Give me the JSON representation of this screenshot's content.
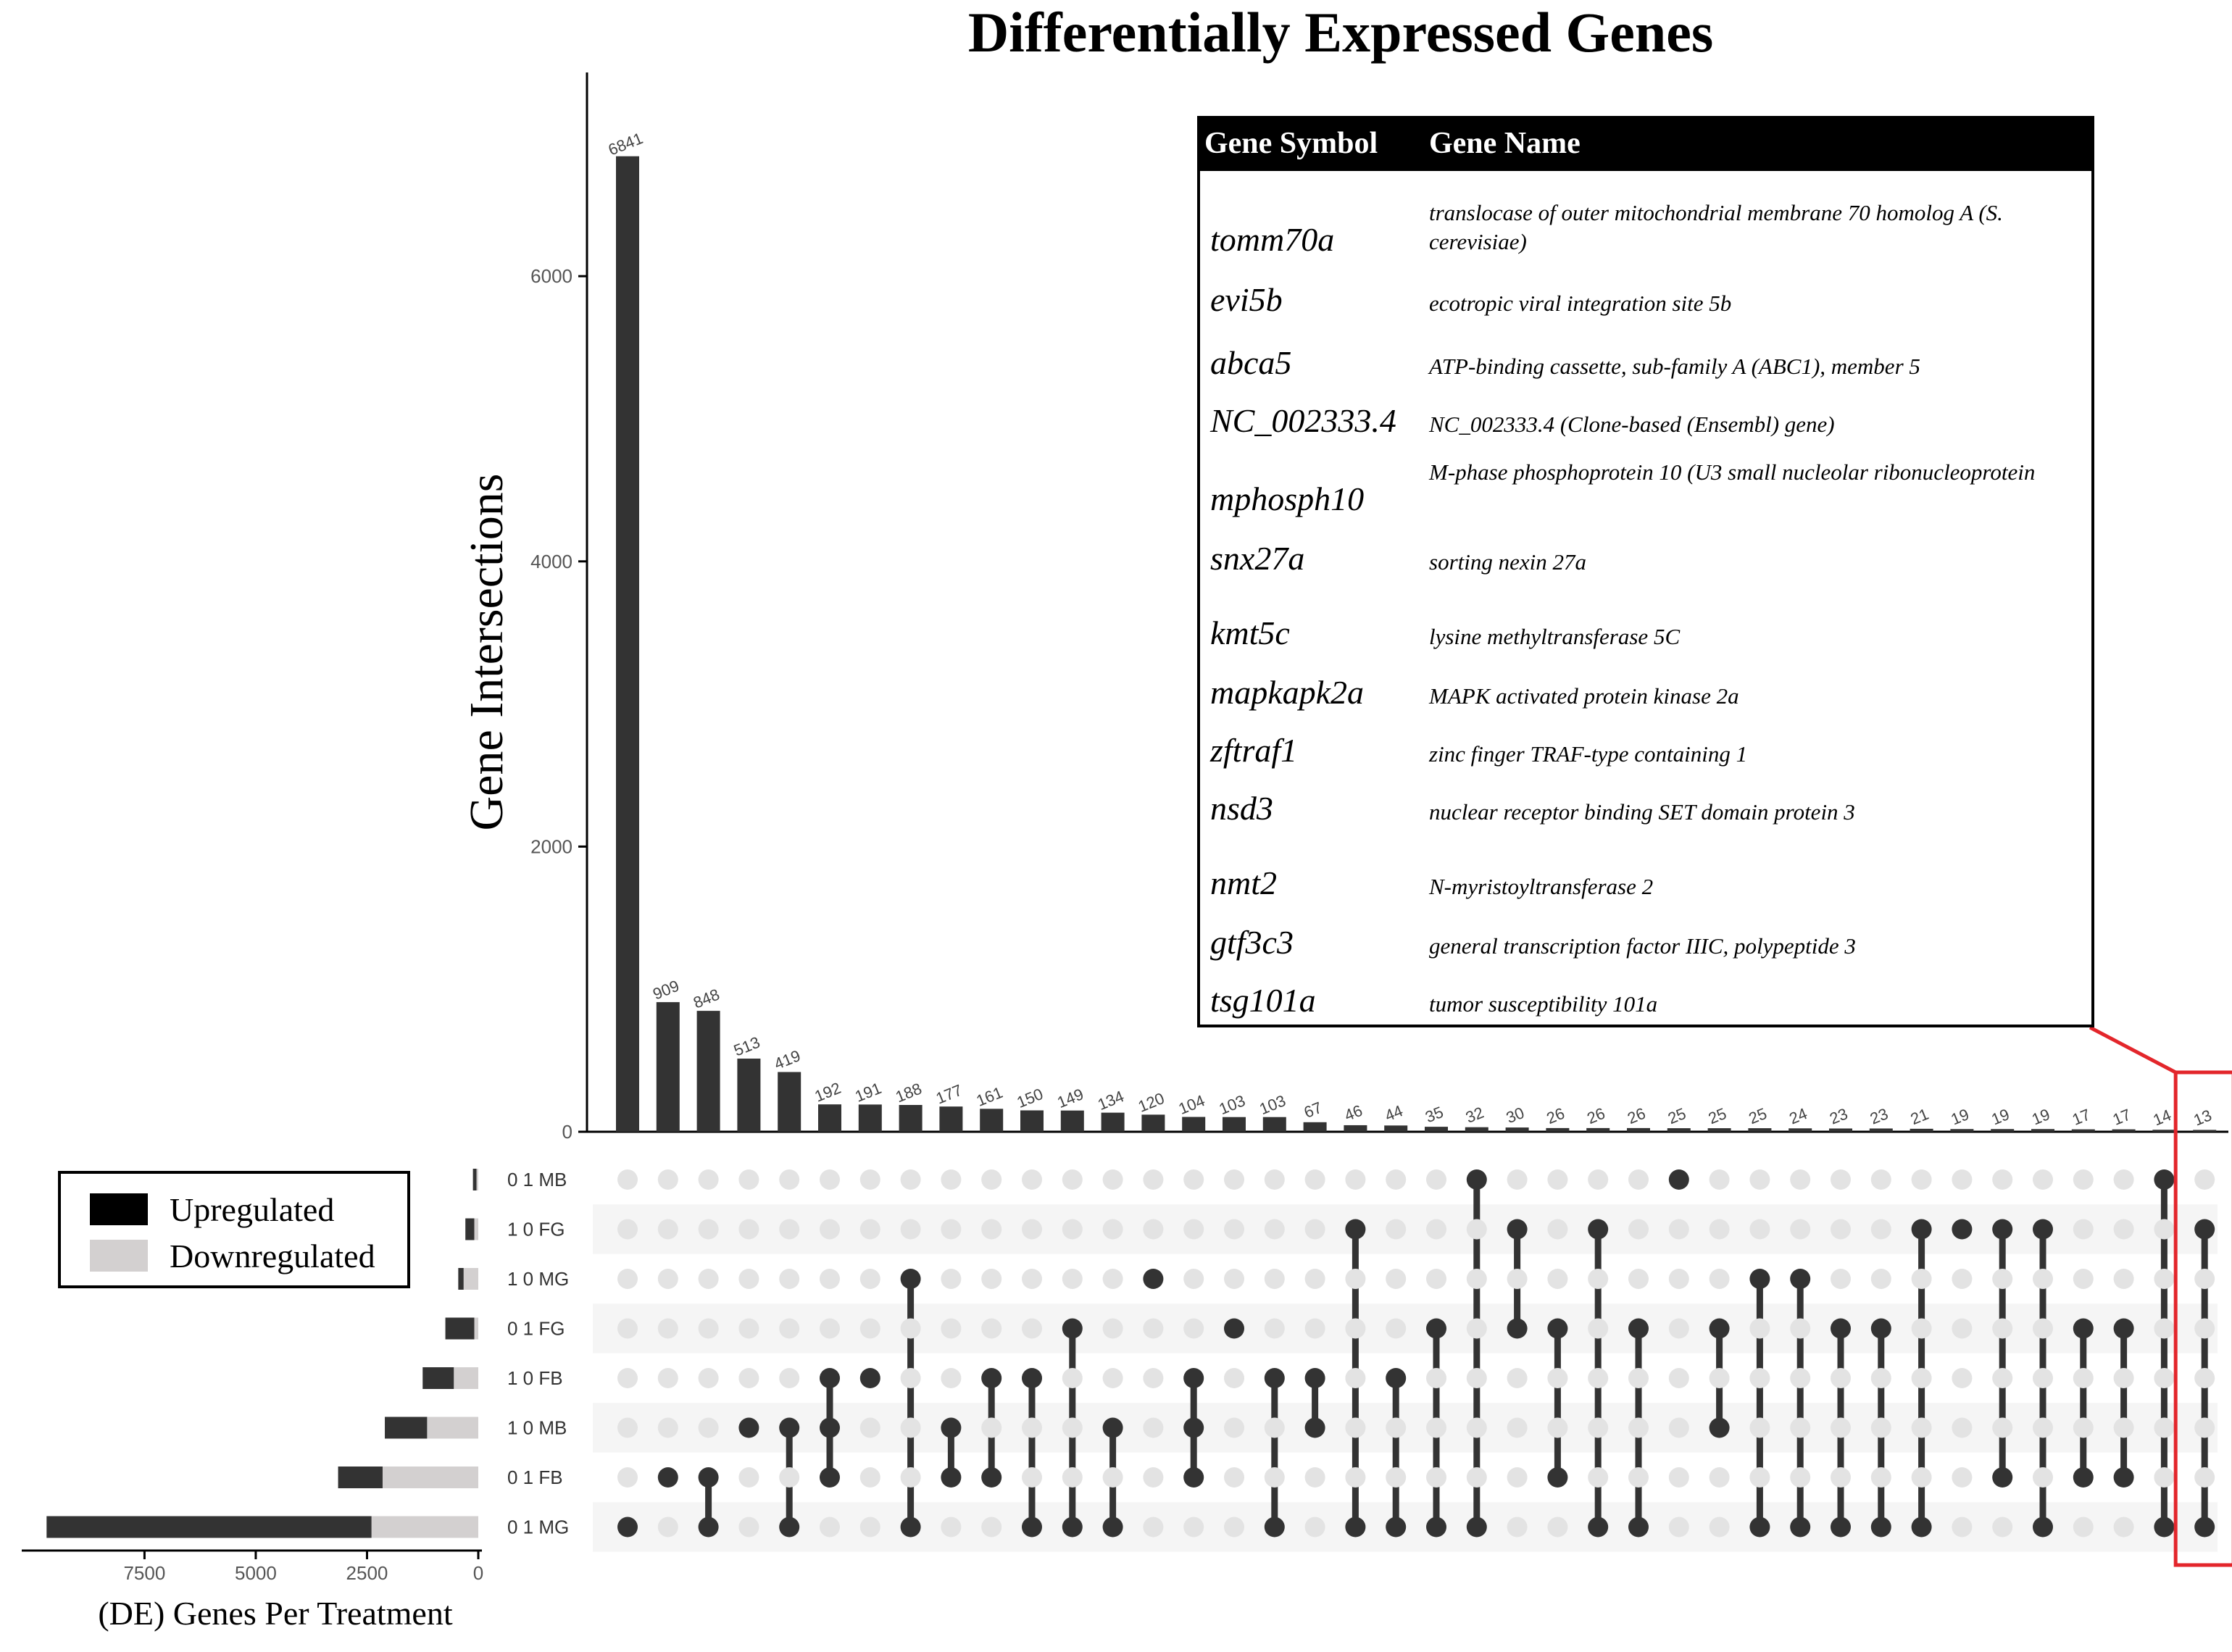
{
  "chart_data": {
    "type": "upset",
    "title": "Differentially Expressed Genes",
    "ylabel": "Gene Intersections",
    "ylim": [
      0,
      7200
    ],
    "yticks": [
      0,
      2000,
      4000,
      6000
    ],
    "set_size_xlabel": "(DE) Genes Per Treatment",
    "set_size_ticks": [
      7500,
      5000,
      2500,
      0
    ],
    "set_size_xlim": [
      0,
      9900
    ],
    "sets": [
      {
        "name": "0 1 MB",
        "up": 80,
        "down": 40
      },
      {
        "name": "1 0 FG",
        "up": 200,
        "down": 90
      },
      {
        "name": "1 0 MG",
        "up": 120,
        "down": 330
      },
      {
        "name": "0 1 FG",
        "up": 650,
        "down": 90
      },
      {
        "name": "1 0 FB",
        "up": 700,
        "down": 550
      },
      {
        "name": "1 0 MB",
        "up": 950,
        "down": 1150
      },
      {
        "name": "0 1 FB",
        "up": 1000,
        "down": 2150
      },
      {
        "name": "0 1 MG",
        "up": 7300,
        "down": 2400
      }
    ],
    "intersections": [
      {
        "value": 6841,
        "sets": [
          7
        ]
      },
      {
        "value": 909,
        "sets": [
          6
        ]
      },
      {
        "value": 848,
        "sets": [
          6,
          7
        ]
      },
      {
        "value": 513,
        "sets": [
          5
        ]
      },
      {
        "value": 419,
        "sets": [
          5,
          7
        ]
      },
      {
        "value": 192,
        "sets": [
          4,
          5,
          6
        ]
      },
      {
        "value": 191,
        "sets": [
          4
        ]
      },
      {
        "value": 188,
        "sets": [
          2,
          7
        ]
      },
      {
        "value": 177,
        "sets": [
          5,
          6
        ]
      },
      {
        "value": 161,
        "sets": [
          4,
          6
        ]
      },
      {
        "value": 150,
        "sets": [
          4,
          7
        ]
      },
      {
        "value": 149,
        "sets": [
          3,
          7
        ]
      },
      {
        "value": 134,
        "sets": [
          5,
          7
        ]
      },
      {
        "value": 120,
        "sets": [
          2
        ]
      },
      {
        "value": 104,
        "sets": [
          4,
          5,
          6
        ]
      },
      {
        "value": 103,
        "sets": [
          3
        ]
      },
      {
        "value": 103,
        "sets": [
          4,
          7
        ]
      },
      {
        "value": 67,
        "sets": [
          4,
          5
        ]
      },
      {
        "value": 46,
        "sets": [
          1,
          7
        ]
      },
      {
        "value": 44,
        "sets": [
          4,
          7
        ]
      },
      {
        "value": 35,
        "sets": [
          3,
          7
        ]
      },
      {
        "value": 32,
        "sets": [
          0,
          7
        ]
      },
      {
        "value": 30,
        "sets": [
          1,
          3
        ]
      },
      {
        "value": 26,
        "sets": [
          3,
          6
        ]
      },
      {
        "value": 26,
        "sets": [
          1,
          7
        ]
      },
      {
        "value": 26,
        "sets": [
          3,
          7
        ]
      },
      {
        "value": 25,
        "sets": [
          0
        ]
      },
      {
        "value": 25,
        "sets": [
          3,
          5
        ]
      },
      {
        "value": 25,
        "sets": [
          2,
          7
        ]
      },
      {
        "value": 24,
        "sets": [
          2,
          7
        ]
      },
      {
        "value": 23,
        "sets": [
          3,
          7
        ]
      },
      {
        "value": 23,
        "sets": [
          3,
          7
        ]
      },
      {
        "value": 21,
        "sets": [
          1,
          7
        ]
      },
      {
        "value": 19,
        "sets": [
          1
        ]
      },
      {
        "value": 19,
        "sets": [
          1,
          6
        ]
      },
      {
        "value": 19,
        "sets": [
          1,
          7
        ]
      },
      {
        "value": 17,
        "sets": [
          3,
          6
        ]
      },
      {
        "value": 17,
        "sets": [
          3,
          6
        ]
      },
      {
        "value": 14,
        "sets": [
          0,
          7
        ]
      },
      {
        "value": 13,
        "sets": [
          1,
          7
        ]
      }
    ],
    "legend": [
      {
        "label": "Upregulated",
        "color": "#000000"
      },
      {
        "label": "Downregulated",
        "color": "#d3d0d0"
      }
    ]
  },
  "gene_table": {
    "headers": [
      "Gene Symbol",
      "Gene Name"
    ],
    "rows": [
      {
        "symbol": "tomm70a",
        "name": "translocase of outer mitochondrial membrane 70 homolog A (S. cerevisiae)"
      },
      {
        "symbol": "evi5b",
        "name": "ecotropic viral integration site 5b"
      },
      {
        "symbol": "abca5",
        "name": "ATP-binding cassette, sub-family A (ABC1), member 5"
      },
      {
        "symbol": "NC_002333.4",
        "name": "NC_002333.4 (Clone-based (Ensembl) gene)"
      },
      {
        "symbol": "mphosph10",
        "name": "M-phase phosphoprotein 10 (U3 small nucleolar ribonucleoprotein"
      },
      {
        "symbol": "snx27a",
        "name": "sorting nexin 27a"
      },
      {
        "symbol": "kmt5c",
        "name": "lysine methyltransferase 5C"
      },
      {
        "symbol": "mapkapk2a",
        "name": "MAPK activated protein kinase 2a"
      },
      {
        "symbol": "zftraf1",
        "name": "zinc finger TRAF-type containing 1"
      },
      {
        "symbol": "nsd3",
        "name": "nuclear receptor binding SET domain protein 3"
      },
      {
        "symbol": "nmt2",
        "name": "N-myristoyltransferase 2"
      },
      {
        "symbol": "gtf3c3",
        "name": "general transcription factor IIIC, polypeptide 3"
      },
      {
        "symbol": "tsg101a",
        "name": "tumor susceptibility 101a"
      }
    ]
  },
  "colors": {
    "bar": "#333333",
    "dot_active": "#333333",
    "dot_inactive": "#e3e3e3",
    "stripe": "#f5f5f5",
    "highlight": "#e3262b",
    "up": "#333333",
    "down": "#d3d0d0"
  }
}
